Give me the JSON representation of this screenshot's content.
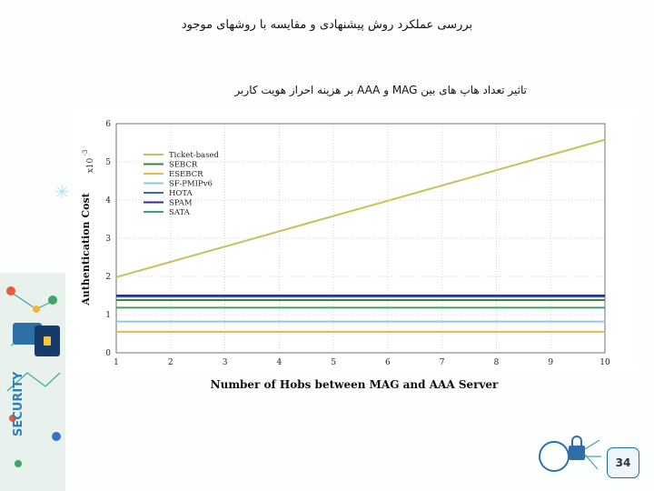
{
  "slide": {
    "title": "بررسی عملکرد روش پیشنهادی و مقایسه با روشهای موجود",
    "subtitle": "تاثیر تعداد هاپ های بین MAG و AAA بر هزینه احراز هویت کاربر",
    "page_number": "34",
    "side_banner_text": "SECURITY"
  },
  "chart_data": {
    "type": "line",
    "title": "",
    "xlabel": "Number of Hobs between MAG and AAA Server",
    "ylabel": "Authentication Cost",
    "y_multiplier_label": "x10",
    "y_multiplier_exp": "-3",
    "xlim": [
      1,
      10
    ],
    "ylim": [
      0,
      6
    ],
    "x_ticks": [
      1,
      2,
      3,
      4,
      5,
      6,
      7,
      8,
      9,
      10
    ],
    "y_ticks": [
      0,
      1,
      2,
      3,
      4,
      5,
      6
    ],
    "grid": true,
    "legend_position": "top-left",
    "x": [
      1,
      2,
      3,
      4,
      5,
      6,
      7,
      8,
      9,
      10
    ],
    "series": [
      {
        "name": "Ticket-based",
        "color": "#c7c25a",
        "values": [
          1.98,
          2.38,
          2.78,
          3.18,
          3.58,
          3.98,
          4.38,
          4.78,
          5.18,
          5.58
        ]
      },
      {
        "name": "SEBCR",
        "color": "#4a7d45",
        "values": [
          1.38,
          1.38,
          1.38,
          1.38,
          1.38,
          1.38,
          1.38,
          1.38,
          1.38,
          1.38
        ]
      },
      {
        "name": "ESEBCR",
        "color": "#e8b84a",
        "values": [
          0.55,
          0.55,
          0.55,
          0.55,
          0.55,
          0.55,
          0.55,
          0.55,
          0.55,
          0.55
        ]
      },
      {
        "name": "SF-PMIPv6",
        "color": "#8ec8e8",
        "values": [
          0.82,
          0.82,
          0.82,
          0.82,
          0.82,
          0.82,
          0.82,
          0.82,
          0.82,
          0.82
        ]
      },
      {
        "name": "HOTA",
        "color": "#2e6fa8",
        "values": [
          1.47,
          1.47,
          1.47,
          1.47,
          1.47,
          1.47,
          1.47,
          1.47,
          1.47,
          1.47
        ]
      },
      {
        "name": "SPAM",
        "color": "#3a2a8a",
        "values": [
          1.5,
          1.5,
          1.5,
          1.5,
          1.5,
          1.5,
          1.5,
          1.5,
          1.5,
          1.5
        ]
      },
      {
        "name": "SATA",
        "color": "#3aa66a",
        "values": [
          1.18,
          1.18,
          1.18,
          1.18,
          1.18,
          1.18,
          1.18,
          1.18,
          1.18,
          1.18
        ]
      }
    ]
  }
}
